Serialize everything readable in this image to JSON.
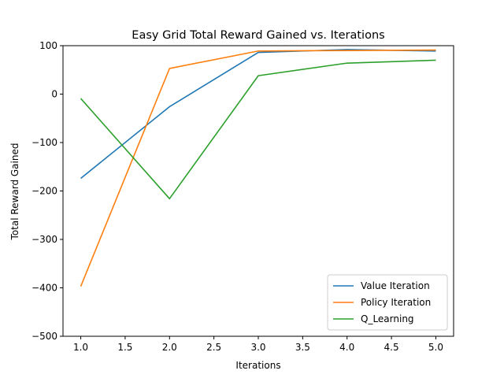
{
  "chart_data": {
    "type": "line",
    "title": "Easy Grid Total Reward Gained vs. Iterations",
    "xlabel": "Iterations",
    "ylabel": "Total Reward Gained",
    "x": [
      1.0,
      2.0,
      3.0,
      4.0,
      5.0
    ],
    "xlim": [
      0.8,
      5.2
    ],
    "ylim": [
      -500,
      100
    ],
    "xticks": [
      1.0,
      1.5,
      2.0,
      2.5,
      3.0,
      3.5,
      4.0,
      4.5,
      5.0
    ],
    "xtick_labels": [
      "1.0",
      "1.5",
      "2.0",
      "2.5",
      "3.0",
      "3.5",
      "4.0",
      "4.5",
      "5.0"
    ],
    "yticks": [
      -500,
      -400,
      -300,
      -200,
      -100,
      0,
      100
    ],
    "ytick_labels": [
      "−500",
      "−400",
      "−300",
      "−200",
      "−100",
      "0",
      "100"
    ],
    "grid": false,
    "legend_position": "lower-right",
    "series": [
      {
        "name": "Value Iteration",
        "color": "#1f77b4",
        "values": [
          -174,
          -26,
          86,
          92,
          89
        ]
      },
      {
        "name": "Policy Iteration",
        "color": "#ff7f0e",
        "values": [
          -397,
          53,
          89,
          90,
          91
        ]
      },
      {
        "name": "Q_Learning",
        "color": "#2ca02c",
        "values": [
          -9,
          -216,
          38,
          64,
          70
        ]
      }
    ]
  }
}
